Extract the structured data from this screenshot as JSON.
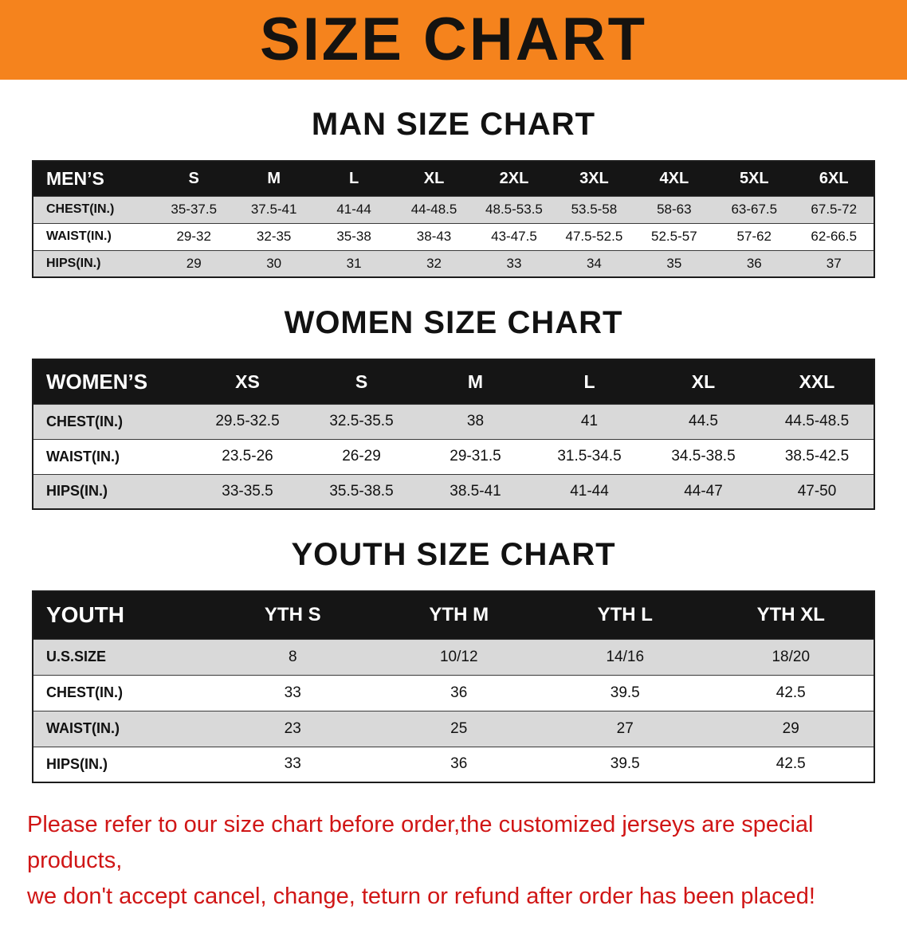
{
  "banner": {
    "title": "SIZE CHART",
    "bg_color": "#f5831d"
  },
  "sections": [
    {
      "id": "men",
      "heading": "MAN SIZE CHART",
      "table": {
        "label": "MEN’S",
        "columns": [
          "S",
          "M",
          "L",
          "XL",
          "2XL",
          "3XL",
          "4XL",
          "5XL",
          "6XL"
        ],
        "rows": [
          {
            "label": "CHEST(IN.)",
            "values": [
              "35-37.5",
              "37.5-41",
              "41-44",
              "44-48.5",
              "48.5-53.5",
              "53.5-58",
              "58-63",
              "63-67.5",
              "67.5-72"
            ]
          },
          {
            "label": "WAIST(IN.)",
            "values": [
              "29-32",
              "32-35",
              "35-38",
              "38-43",
              "43-47.5",
              "47.5-52.5",
              "52.5-57",
              "57-62",
              "62-66.5"
            ]
          },
          {
            "label": "HIPS(IN.)",
            "values": [
              "29",
              "30",
              "31",
              "32",
              "33",
              "34",
              "35",
              "36",
              "37"
            ]
          }
        ]
      }
    },
    {
      "id": "women",
      "heading": "WOMEN SIZE CHART",
      "table": {
        "label": "WOMEN’S",
        "columns": [
          "XS",
          "S",
          "M",
          "L",
          "XL",
          "XXL"
        ],
        "rows": [
          {
            "label": "CHEST(IN.)",
            "values": [
              "29.5-32.5",
              "32.5-35.5",
              "38",
              "41",
              "44.5",
              "44.5-48.5"
            ]
          },
          {
            "label": "WAIST(IN.)",
            "values": [
              "23.5-26",
              "26-29",
              "29-31.5",
              "31.5-34.5",
              "34.5-38.5",
              "38.5-42.5"
            ]
          },
          {
            "label": "HIPS(IN.)",
            "values": [
              "33-35.5",
              "35.5-38.5",
              "38.5-41",
              "41-44",
              "44-47",
              "47-50"
            ]
          }
        ]
      }
    },
    {
      "id": "youth",
      "heading": "YOUTH SIZE CHART",
      "table": {
        "label": "YOUTH",
        "columns": [
          "YTH S",
          "YTH M",
          "YTH L",
          "YTH XL"
        ],
        "rows": [
          {
            "label": "U.S.SIZE",
            "values": [
              "8",
              "10/12",
              "14/16",
              "18/20"
            ]
          },
          {
            "label": "CHEST(IN.)",
            "values": [
              "33",
              "36",
              "39.5",
              "42.5"
            ]
          },
          {
            "label": "WAIST(IN.)",
            "values": [
              "23",
              "25",
              "27",
              "29"
            ]
          },
          {
            "label": "HIPS(IN.)",
            "values": [
              "33",
              "36",
              "39.5",
              "42.5"
            ]
          }
        ]
      }
    }
  ],
  "disclaimer": {
    "color": "#d01616",
    "lines": [
      "Please refer to our size chart before order,the customized jerseys are special products,",
      "we don't accept cancel, change, teturn or refund after order has been placed!"
    ]
  }
}
